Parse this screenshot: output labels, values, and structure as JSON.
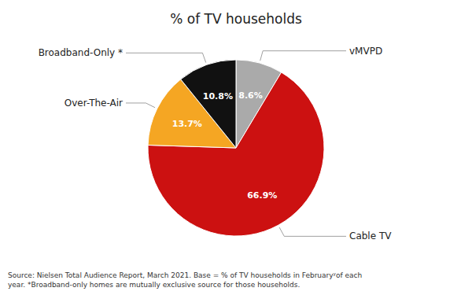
{
  "chart_data": {
    "type": "pie",
    "title": "% of TV households",
    "categories": [
      "vMVPD",
      "Cable TV",
      "Over-The-Air",
      "Broadband-Only *"
    ],
    "values": [
      8.6,
      66.9,
      13.7,
      10.8
    ],
    "value_labels": [
      "8.6%",
      "66.9%",
      "13.7%",
      "10.8%"
    ],
    "colors": [
      "#aaaaaa",
      "#cc1111",
      "#f5a623",
      "#111111"
    ],
    "data_labels": true,
    "annotations": [
      "Source: Nielsen Total Audience Report, March 2021. Base = % of TV households in Februaryʸof each\nyear. *Broadband-only homes are mutually exclusive source for those households."
    ]
  }
}
